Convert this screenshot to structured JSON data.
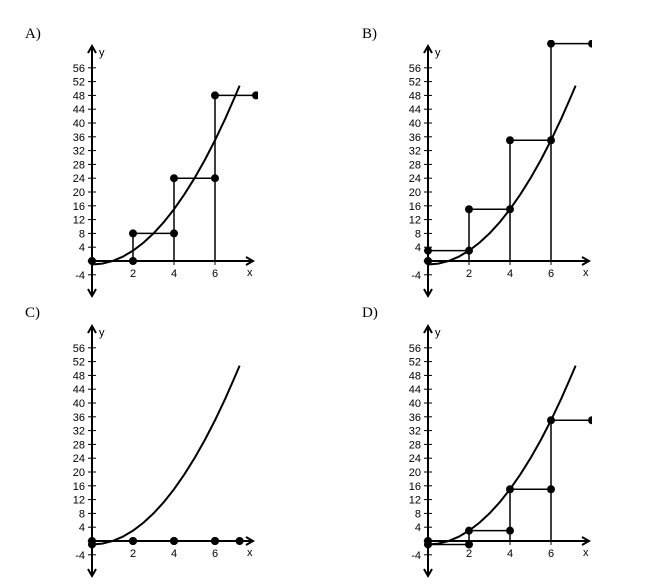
{
  "chart_data": [
    {
      "panel_label": "A)",
      "type": "line",
      "xlabel": "x",
      "ylabel": "y",
      "xlim": [
        -0.3,
        8
      ],
      "ylim": [
        -4,
        58
      ],
      "x_ticks": [
        2,
        4,
        6
      ],
      "x_tick_labels": [
        "2",
        "4",
        "6"
      ],
      "y_ticks": [
        -4,
        4,
        8,
        12,
        16,
        20,
        24,
        28,
        32,
        36,
        40,
        44,
        48,
        52,
        56
      ],
      "y_tick_labels": [
        "-4",
        "4",
        "8",
        "12",
        "16",
        "20",
        "24",
        "28",
        "32",
        "36",
        "40",
        "44",
        "48",
        "52",
        "56"
      ],
      "curve": {
        "x": [
          0,
          0.5,
          1,
          1.5,
          2,
          2.5,
          3,
          3.5,
          4,
          4.5,
          5,
          5.5,
          6,
          6.5,
          7,
          7.2
        ],
        "y": [
          -1,
          -0.75,
          0,
          1.25,
          3,
          5.25,
          8,
          11.25,
          15,
          19.25,
          24,
          29.25,
          35,
          41.25,
          48,
          50.84
        ]
      },
      "steps": [
        {
          "x_start": 0,
          "x_end": 2,
          "y": 0
        },
        {
          "x_start": 2,
          "x_end": 4,
          "y": 8
        },
        {
          "x_start": 4,
          "x_end": 6,
          "y": 24
        },
        {
          "x_start": 6,
          "x_end": 8,
          "y": 48
        }
      ]
    },
    {
      "panel_label": "B)",
      "type": "line",
      "xlabel": "x",
      "ylabel": "y",
      "xlim": [
        -0.3,
        8
      ],
      "ylim": [
        -4,
        58
      ],
      "x_ticks": [
        2,
        4,
        6
      ],
      "x_tick_labels": [
        "2",
        "4",
        "6"
      ],
      "y_ticks": [
        -4,
        4,
        8,
        12,
        16,
        20,
        24,
        28,
        32,
        36,
        40,
        44,
        48,
        52,
        56
      ],
      "y_tick_labels": [
        "-4",
        "4",
        "8",
        "12",
        "16",
        "20",
        "24",
        "28",
        "32",
        "36",
        "40",
        "44",
        "48",
        "52",
        "56"
      ],
      "curve": {
        "x": [
          0,
          0.5,
          1,
          1.5,
          2,
          2.5,
          3,
          3.5,
          4,
          4.5,
          5,
          5.5,
          6,
          6.5,
          7,
          7.2
        ],
        "y": [
          -1,
          -0.75,
          0,
          1.25,
          3,
          5.25,
          8,
          11.25,
          15,
          19.25,
          24,
          29.25,
          35,
          41.25,
          48,
          50.84
        ]
      },
      "steps": [
        {
          "x_start": 0,
          "x_end": 2,
          "y": 3
        },
        {
          "x_start": 2,
          "x_end": 4,
          "y": 15
        },
        {
          "x_start": 4,
          "x_end": 6,
          "y": 35
        },
        {
          "x_start": 6,
          "x_end": 8,
          "y": 63
        }
      ],
      "extra_points": [
        {
          "x": 0,
          "y": 0
        }
      ]
    },
    {
      "panel_label": "C)",
      "type": "line",
      "xlabel": "x",
      "ylabel": "y",
      "xlim": [
        -0.3,
        8
      ],
      "ylim": [
        -4,
        58
      ],
      "x_ticks": [
        2,
        4,
        6
      ],
      "x_tick_labels": [
        "2",
        "4",
        "6"
      ],
      "y_ticks": [
        -4,
        4,
        8,
        12,
        16,
        20,
        24,
        28,
        32,
        36,
        40,
        44,
        48,
        52,
        56
      ],
      "y_tick_labels": [
        "-4",
        "4",
        "8",
        "12",
        "16",
        "20",
        "24",
        "28",
        "32",
        "36",
        "40",
        "44",
        "48",
        "52",
        "56"
      ],
      "curve": {
        "x": [
          0,
          0.5,
          1,
          1.5,
          2,
          2.5,
          3,
          3.5,
          4,
          4.5,
          5,
          5.5,
          6,
          6.5,
          7,
          7.2
        ],
        "y": [
          -1,
          -0.75,
          0,
          1.25,
          3,
          5.25,
          8,
          11.25,
          15,
          19.25,
          24,
          29.25,
          35,
          41.25,
          48,
          50.84
        ]
      },
      "steps": [
        {
          "x_start": 0,
          "x_end": 2,
          "y": 0
        },
        {
          "x_start": 2,
          "x_end": 4,
          "y": 0
        },
        {
          "x_start": 4,
          "x_end": 6,
          "y": 0
        },
        {
          "x_start": 6,
          "x_end": 7.2,
          "y": 0
        }
      ],
      "extra_points": [
        {
          "x": 0,
          "y": -1
        }
      ]
    },
    {
      "panel_label": "D)",
      "type": "line",
      "xlabel": "x",
      "ylabel": "y",
      "xlim": [
        -0.3,
        8
      ],
      "ylim": [
        -4,
        58
      ],
      "x_ticks": [
        2,
        4,
        6
      ],
      "x_tick_labels": [
        "2",
        "4",
        "6"
      ],
      "y_ticks": [
        -4,
        4,
        8,
        12,
        16,
        20,
        24,
        28,
        32,
        36,
        40,
        44,
        48,
        52,
        56
      ],
      "y_tick_labels": [
        "-4",
        "4",
        "8",
        "12",
        "16",
        "20",
        "24",
        "28",
        "32",
        "36",
        "40",
        "44",
        "48",
        "52",
        "56"
      ],
      "curve": {
        "x": [
          0,
          0.5,
          1,
          1.5,
          2,
          2.5,
          3,
          3.5,
          4,
          4.5,
          5,
          5.5,
          6,
          6.5,
          7,
          7.2
        ],
        "y": [
          -1,
          -0.75,
          0,
          1.25,
          3,
          5.25,
          8,
          11.25,
          15,
          19.25,
          24,
          29.25,
          35,
          41.25,
          48,
          50.84
        ]
      },
      "steps": [
        {
          "x_start": 0,
          "x_end": 2,
          "y": -1
        },
        {
          "x_start": 2,
          "x_end": 4,
          "y": 3
        },
        {
          "x_start": 4,
          "x_end": 6,
          "y": 15
        },
        {
          "x_start": 6,
          "x_end": 8,
          "y": 35
        }
      ],
      "extra_points": [
        {
          "x": 0,
          "y": 0
        }
      ]
    }
  ]
}
